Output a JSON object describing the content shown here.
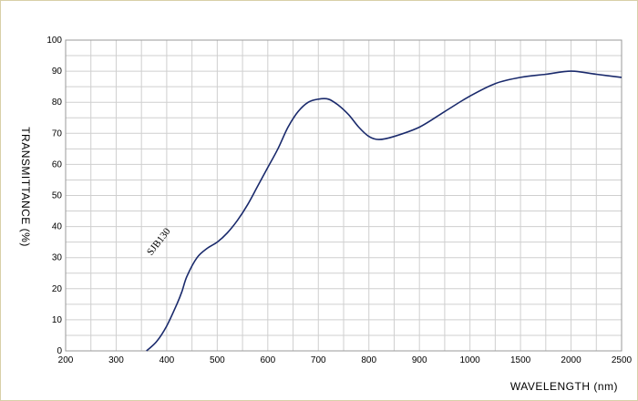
{
  "chart_data": {
    "type": "line",
    "ylabel": "TRANSMITTANCE  (%)",
    "xlabel": "WAVELENGTH (nm)",
    "yticks": [
      "0",
      "10",
      "20",
      "30",
      "40",
      "50",
      "60",
      "70",
      "80",
      "90",
      "100"
    ],
    "xticks": [
      "200",
      "300",
      "400",
      "500",
      "600",
      "700",
      "800",
      "900",
      "1000",
      "1500",
      "2000",
      "2500"
    ],
    "ylim": [
      0,
      100
    ],
    "x_scale": "non-uniform: 200–1000 nm at 100 nm per division, 1000–2500 nm at 500 nm per division",
    "grid": true,
    "series": [
      {
        "name": "SJB130",
        "x": [
          360,
          380,
          400,
          420,
          430,
          440,
          460,
          480,
          500,
          520,
          540,
          560,
          580,
          600,
          620,
          640,
          660,
          680,
          700,
          720,
          740,
          760,
          780,
          800,
          820,
          850,
          900,
          950,
          1000,
          1250,
          1500,
          1750,
          2000,
          2250,
          2500
        ],
        "y": [
          0,
          3,
          8,
          15,
          19,
          24,
          30,
          33,
          35,
          38,
          42,
          47,
          53,
          59,
          65,
          72,
          77,
          80,
          81,
          81,
          79,
          76,
          72,
          69,
          68,
          69,
          72,
          77,
          82,
          86,
          88,
          89,
          90,
          89,
          88
        ]
      }
    ],
    "annotations": [
      {
        "text": "SJB130",
        "x": 460,
        "y": 30
      }
    ]
  }
}
